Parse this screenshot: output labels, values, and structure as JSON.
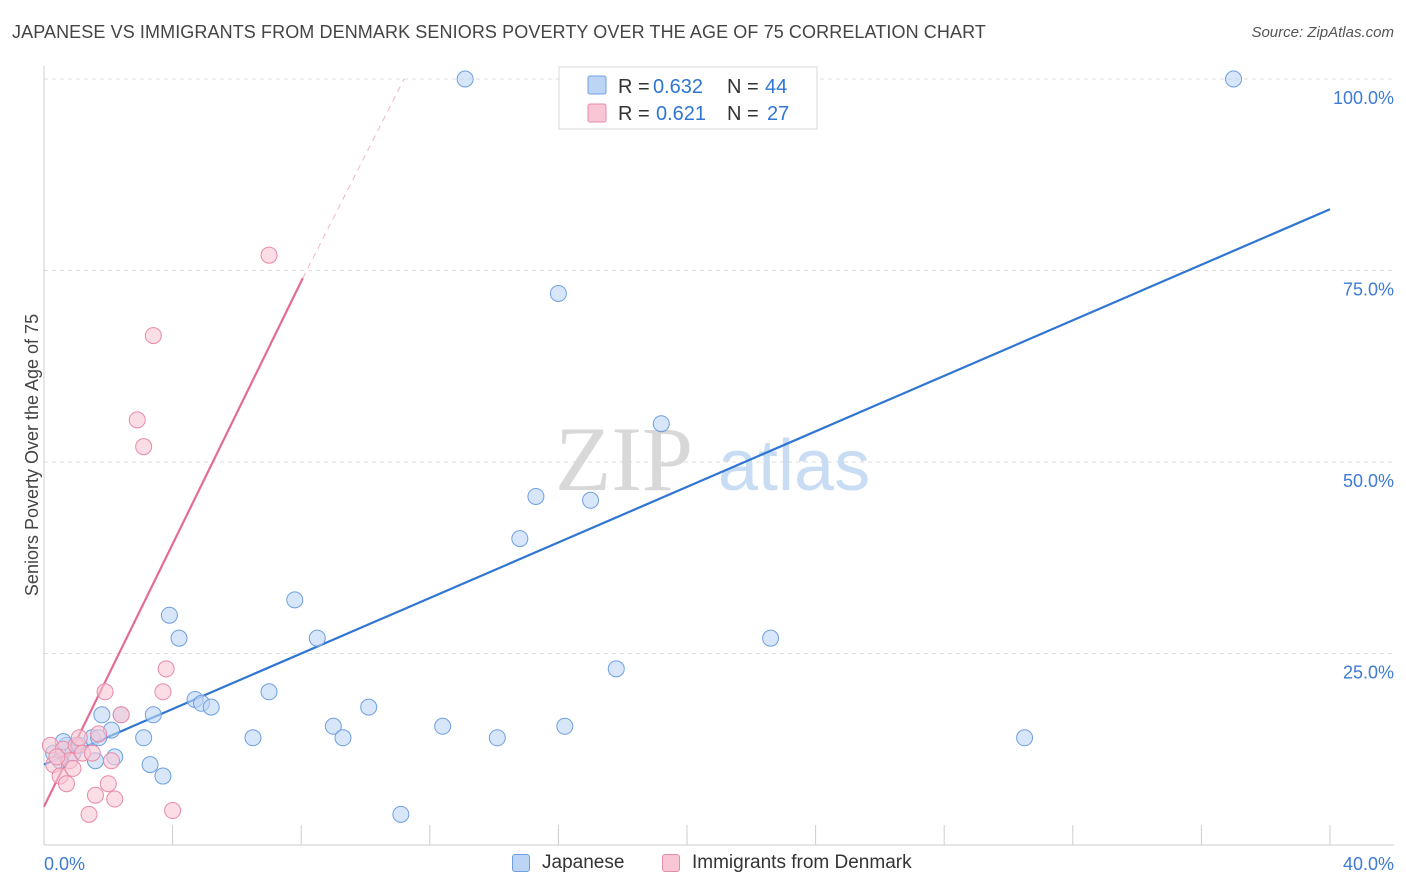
{
  "header": {
    "title": "JAPANESE VS IMMIGRANTS FROM DENMARK SENIORS POVERTY OVER THE AGE OF 75 CORRELATION CHART",
    "source": "Source: ZipAtlas.com"
  },
  "watermark": {
    "zip": "ZIP",
    "atlas": "atlas"
  },
  "colors": {
    "blue_fill": "#bcd5f5",
    "blue_stroke": "#6f9fe0",
    "blue_line": "#2f76d2",
    "pink_fill": "#f8c6d4",
    "pink_stroke": "#e98aa8",
    "pink_line": "#e46b95",
    "grid": "#dddddd",
    "tick_label": "#3d7bd4"
  },
  "legend": {
    "japanese": {
      "r_label": "R = ",
      "r_value": "0.632",
      "n_label": "N = ",
      "n_value": "44"
    },
    "denmark": {
      "r_label": "R = ",
      "r_value": "0.621",
      "n_label": "N = ",
      "n_value": "27"
    }
  },
  "bottom_legend": {
    "japanese": "Japanese",
    "denmark": "Immigrants from Denmark"
  },
  "chart_data": {
    "type": "scatter",
    "title": "JAPANESE VS IMMIGRANTS FROM DENMARK SENIORS POVERTY OVER THE AGE OF 75 CORRELATION CHART",
    "xlabel": "",
    "ylabel": "Seniors Poverty Over the Age of 75",
    "xlim": [
      0,
      40
    ],
    "ylim": [
      0,
      100
    ],
    "x_tick_labels": {
      "min": "0.0%",
      "max": "40.0%"
    },
    "y_tick_labels": [
      "25.0%",
      "50.0%",
      "75.0%",
      "100.0%"
    ],
    "y_ticks": [
      25,
      50,
      75,
      100
    ],
    "grid": true,
    "series": [
      {
        "name": "Japanese",
        "points": [
          [
            0.3,
            12
          ],
          [
            0.5,
            11
          ],
          [
            0.7,
            13
          ],
          [
            0.9,
            12
          ],
          [
            1.1,
            13
          ],
          [
            1.5,
            14
          ],
          [
            1.6,
            11
          ],
          [
            1.7,
            14
          ],
          [
            1.8,
            17
          ],
          [
            2.1,
            15
          ],
          [
            2.2,
            11.5
          ],
          [
            2.4,
            17
          ],
          [
            3.1,
            14
          ],
          [
            3.3,
            10.5
          ],
          [
            3.4,
            17
          ],
          [
            3.7,
            9
          ],
          [
            3.9,
            30
          ],
          [
            4.2,
            27
          ],
          [
            4.7,
            19
          ],
          [
            4.9,
            18.5
          ],
          [
            5.2,
            18
          ],
          [
            6.5,
            14
          ],
          [
            7.0,
            20
          ],
          [
            7.8,
            32
          ],
          [
            8.5,
            27
          ],
          [
            9.0,
            15.5
          ],
          [
            9.3,
            14
          ],
          [
            10.1,
            18
          ],
          [
            11.1,
            4
          ],
          [
            12.4,
            15.5
          ],
          [
            13.1,
            100
          ],
          [
            14.1,
            14
          ],
          [
            14.8,
            40
          ],
          [
            15.3,
            45.5
          ],
          [
            16.0,
            72
          ],
          [
            16.2,
            15.5
          ],
          [
            17.0,
            45
          ],
          [
            17.8,
            23
          ],
          [
            19.2,
            55
          ],
          [
            20.1,
            100
          ],
          [
            22.6,
            27
          ],
          [
            30.5,
            14
          ],
          [
            37.0,
            100
          ],
          [
            0.6,
            13.5
          ]
        ],
        "trend": {
          "x": [
            0,
            40
          ],
          "y": [
            10.5,
            83
          ]
        }
      },
      {
        "name": "Immigrants from Denmark",
        "points": [
          [
            0.2,
            13
          ],
          [
            0.3,
            10.5
          ],
          [
            0.5,
            9
          ],
          [
            0.6,
            12.5
          ],
          [
            0.7,
            8
          ],
          [
            0.8,
            11
          ],
          [
            1.0,
            13
          ],
          [
            1.1,
            14
          ],
          [
            1.2,
            12
          ],
          [
            1.4,
            4
          ],
          [
            1.5,
            12
          ],
          [
            1.6,
            6.5
          ],
          [
            1.7,
            14.5
          ],
          [
            1.9,
            20
          ],
          [
            2.0,
            8
          ],
          [
            2.1,
            11
          ],
          [
            2.2,
            6
          ],
          [
            2.4,
            17
          ],
          [
            2.9,
            55.5
          ],
          [
            3.1,
            52
          ],
          [
            3.4,
            66.5
          ],
          [
            3.7,
            20
          ],
          [
            3.8,
            23
          ],
          [
            4.0,
            4.5
          ],
          [
            7.0,
            77
          ],
          [
            0.4,
            11.5
          ],
          [
            0.9,
            10
          ]
        ],
        "trend": {
          "x": [
            0,
            8.05
          ],
          "y": [
            5,
            74
          ]
        },
        "trend_dashed": {
          "x": [
            8.05,
            11.2
          ],
          "y": [
            74,
            100
          ]
        }
      }
    ]
  }
}
